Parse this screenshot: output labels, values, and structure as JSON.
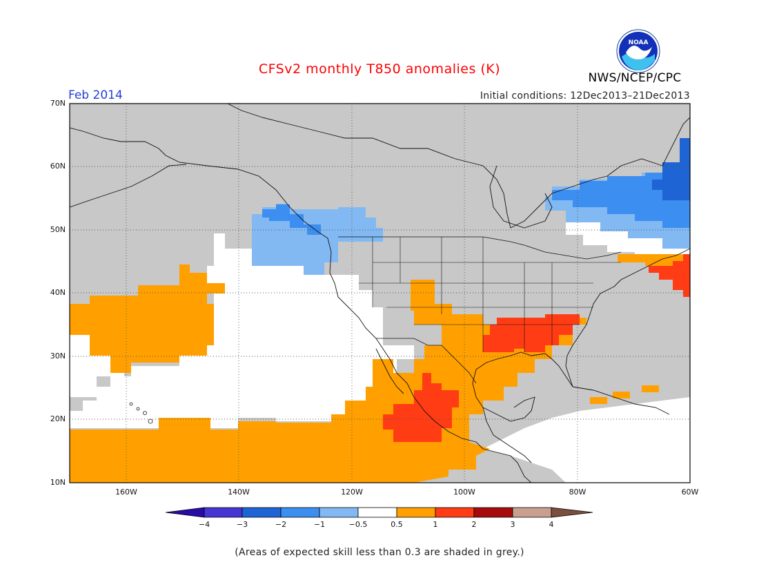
{
  "title": "CFSv2 monthly T850 anomalies (K)",
  "month": "Feb 2014",
  "initial_conditions": "Initial conditions: 12Dec2013–21Dec2013",
  "agency": "NWS/NCEP/CPC",
  "logo_icon": "noaa-logo-icon",
  "note": "(Areas of expected skill less than 0.3 are shaded in grey.)",
  "lat_labels": [
    "70N",
    "60N",
    "50N",
    "40N",
    "30N",
    "20N",
    "10N"
  ],
  "lon_labels": [
    "160W",
    "140W",
    "120W",
    "100W",
    "80W",
    "60W"
  ],
  "colorbar": {
    "labels": [
      "−4",
      "−3",
      "−2",
      "−1",
      "−0.5",
      "0.5",
      "1",
      "2",
      "3",
      "4"
    ],
    "colors": [
      "#2a0aa8",
      "#4636d4",
      "#1e64d4",
      "#3c8ef0",
      "#82b9f2",
      "#ffffff",
      "#ffa000",
      "#ff3c14",
      "#a60c0c",
      "#c9a090",
      "#7b4e3e"
    ]
  },
  "colors": {
    "grey": "#c8c8c8",
    "orange": "#ffa000",
    "red": "#ff3c14",
    "light_blue": "#82b9f2",
    "mid_blue": "#3c8ef0",
    "dark_blue": "#1e64d4",
    "title": "#ff0000",
    "month": "#1f3fd6"
  }
}
